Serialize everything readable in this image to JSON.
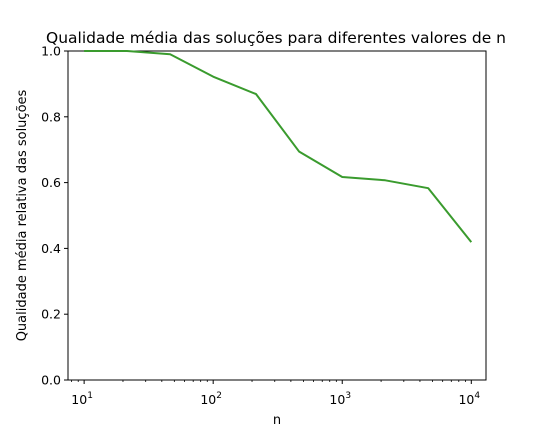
{
  "chart_data": {
    "type": "line",
    "title": "Qualidade média das soluções para diferentes valores de n",
    "xlabel": "n",
    "ylabel": "Qualidade média relativa das soluções",
    "x_scale": "log",
    "xlim": [
      7.5,
      13000
    ],
    "ylim": [
      0.0,
      1.0
    ],
    "x_ticks": [
      10,
      100,
      1000,
      10000
    ],
    "x_tick_labels": [
      {
        "base": "10",
        "exp": "1"
      },
      {
        "base": "10",
        "exp": "2"
      },
      {
        "base": "10",
        "exp": "3"
      },
      {
        "base": "10",
        "exp": "4"
      }
    ],
    "y_ticks": [
      0.0,
      0.2,
      0.4,
      0.6,
      0.8,
      1.0
    ],
    "y_tick_labels": [
      "0.0",
      "0.2",
      "0.4",
      "0.6",
      "0.8",
      "1.0"
    ],
    "grid": false,
    "series": [
      {
        "color": "#3a9b2e",
        "x": [
          10,
          21.5,
          46.4,
          100,
          215,
          464,
          1000,
          2154,
          4642,
          10000
        ],
        "y": [
          1.0,
          1.0,
          0.99,
          0.922,
          0.869,
          0.694,
          0.617,
          0.607,
          0.583,
          0.419
        ]
      }
    ]
  }
}
